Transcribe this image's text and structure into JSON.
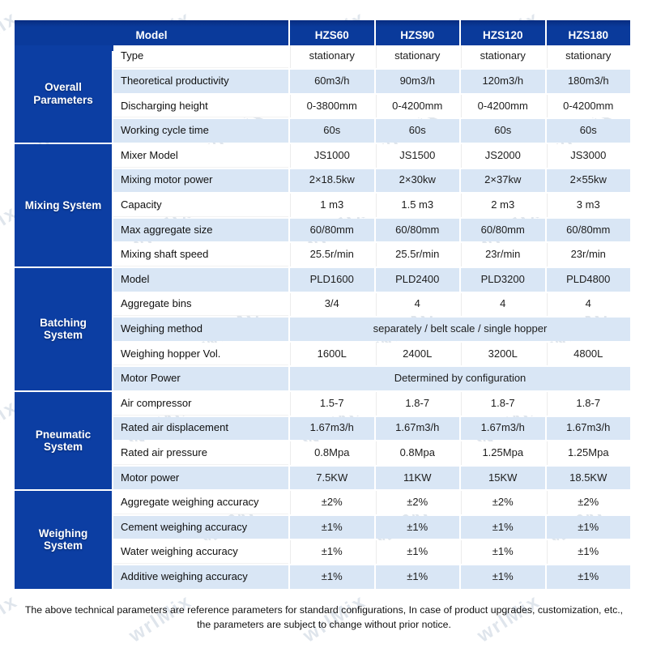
{
  "colors": {
    "header_blue": "#0a3a9b",
    "header_top_edge": "#082c80",
    "section_blue": "#0c3ea3",
    "row_alt_blue": "#d9e6f5",
    "row_white": "#ffffff",
    "text_dark": "#1d1d1d"
  },
  "watermark": {
    "text": "wrlMix"
  },
  "table": {
    "header": {
      "model_label": "Model",
      "columns": [
        "HZS60",
        "HZS90",
        "HZS120",
        "HZS180"
      ]
    },
    "sections": [
      {
        "name": "Overall Parameters",
        "rows": [
          {
            "label": "Type",
            "values": [
              "stationary",
              "stationary",
              "stationary",
              "stationary"
            ]
          },
          {
            "label": "Theoretical productivity",
            "values": [
              "60m3/h",
              "90m3/h",
              "120m3/h",
              "180m3/h"
            ]
          },
          {
            "label": "Discharging height",
            "values": [
              "0-3800mm",
              "0-4200mm",
              "0-4200mm",
              "0-4200mm"
            ]
          },
          {
            "label": "Working cycle time",
            "values": [
              "60s",
              "60s",
              "60s",
              "60s"
            ]
          }
        ]
      },
      {
        "name": "Mixing System",
        "rows": [
          {
            "label": "Mixer Model",
            "values": [
              "JS1000",
              "JS1500",
              "JS2000",
              "JS3000"
            ]
          },
          {
            "label": "Mixing motor power",
            "values": [
              "2×18.5kw",
              "2×30kw",
              "2×37kw",
              "2×55kw"
            ]
          },
          {
            "label": "Capacity",
            "values": [
              "1 m3",
              "1.5 m3",
              "2 m3",
              "3 m3"
            ]
          },
          {
            "label": "Max aggregate size",
            "values": [
              "60/80mm",
              "60/80mm",
              "60/80mm",
              "60/80mm"
            ]
          },
          {
            "label": "Mixing shaft speed",
            "values": [
              "25.5r/min",
              "25.5r/min",
              "23r/min",
              "23r/min"
            ]
          }
        ]
      },
      {
        "name": "Batching System",
        "rows": [
          {
            "label": "Model",
            "values": [
              "PLD1600",
              "PLD2400",
              "PLD3200",
              "PLD4800"
            ]
          },
          {
            "label": "Aggregate bins",
            "values": [
              "3/4",
              "4",
              "4",
              "4"
            ]
          },
          {
            "label": "Weighing method",
            "span": "separately  / belt scale / single hopper"
          },
          {
            "label": "Weighing hopper Vol.",
            "values": [
              "1600L",
              "2400L",
              "3200L",
              "4800L"
            ]
          },
          {
            "label": "Motor Power",
            "span": "Determined by configuration"
          }
        ]
      },
      {
        "name": "Pneumatic System",
        "rows": [
          {
            "label": "Air compressor",
            "values": [
              "1.5-7",
              "1.8-7",
              "1.8-7",
              "1.8-7"
            ]
          },
          {
            "label": "Rated air displacement",
            "values": [
              "1.67m3/h",
              "1.67m3/h",
              "1.67m3/h",
              "1.67m3/h"
            ]
          },
          {
            "label": "Rated air pressure",
            "values": [
              "0.8Mpa",
              "0.8Mpa",
              "1.25Mpa",
              "1.25Mpa"
            ]
          },
          {
            "label": "Motor power",
            "values": [
              "7.5KW",
              "11KW",
              "15KW",
              "18.5KW"
            ]
          }
        ]
      },
      {
        "name": "Weighing System",
        "rows": [
          {
            "label": "Aggregate weighing accuracy",
            "values": [
              "±2%",
              "±2%",
              "±2%",
              "±2%"
            ]
          },
          {
            "label": "Cement weighing accuracy",
            "values": [
              "±1%",
              "±1%",
              "±1%",
              "±1%"
            ]
          },
          {
            "label": "Water weighing accuracy",
            "values": [
              "±1%",
              "±1%",
              "±1%",
              "±1%"
            ]
          },
          {
            "label": "Additive weighing accuracy",
            "values": [
              "±1%",
              "±1%",
              "±1%",
              "±1%"
            ]
          }
        ]
      }
    ]
  },
  "footer": {
    "note_line1": "The above technical parameters are reference parameters for standard configurations, In case of  product upgrades, customization, etc.,",
    "note_line2": "the parameters are subject to change without prior notice."
  }
}
